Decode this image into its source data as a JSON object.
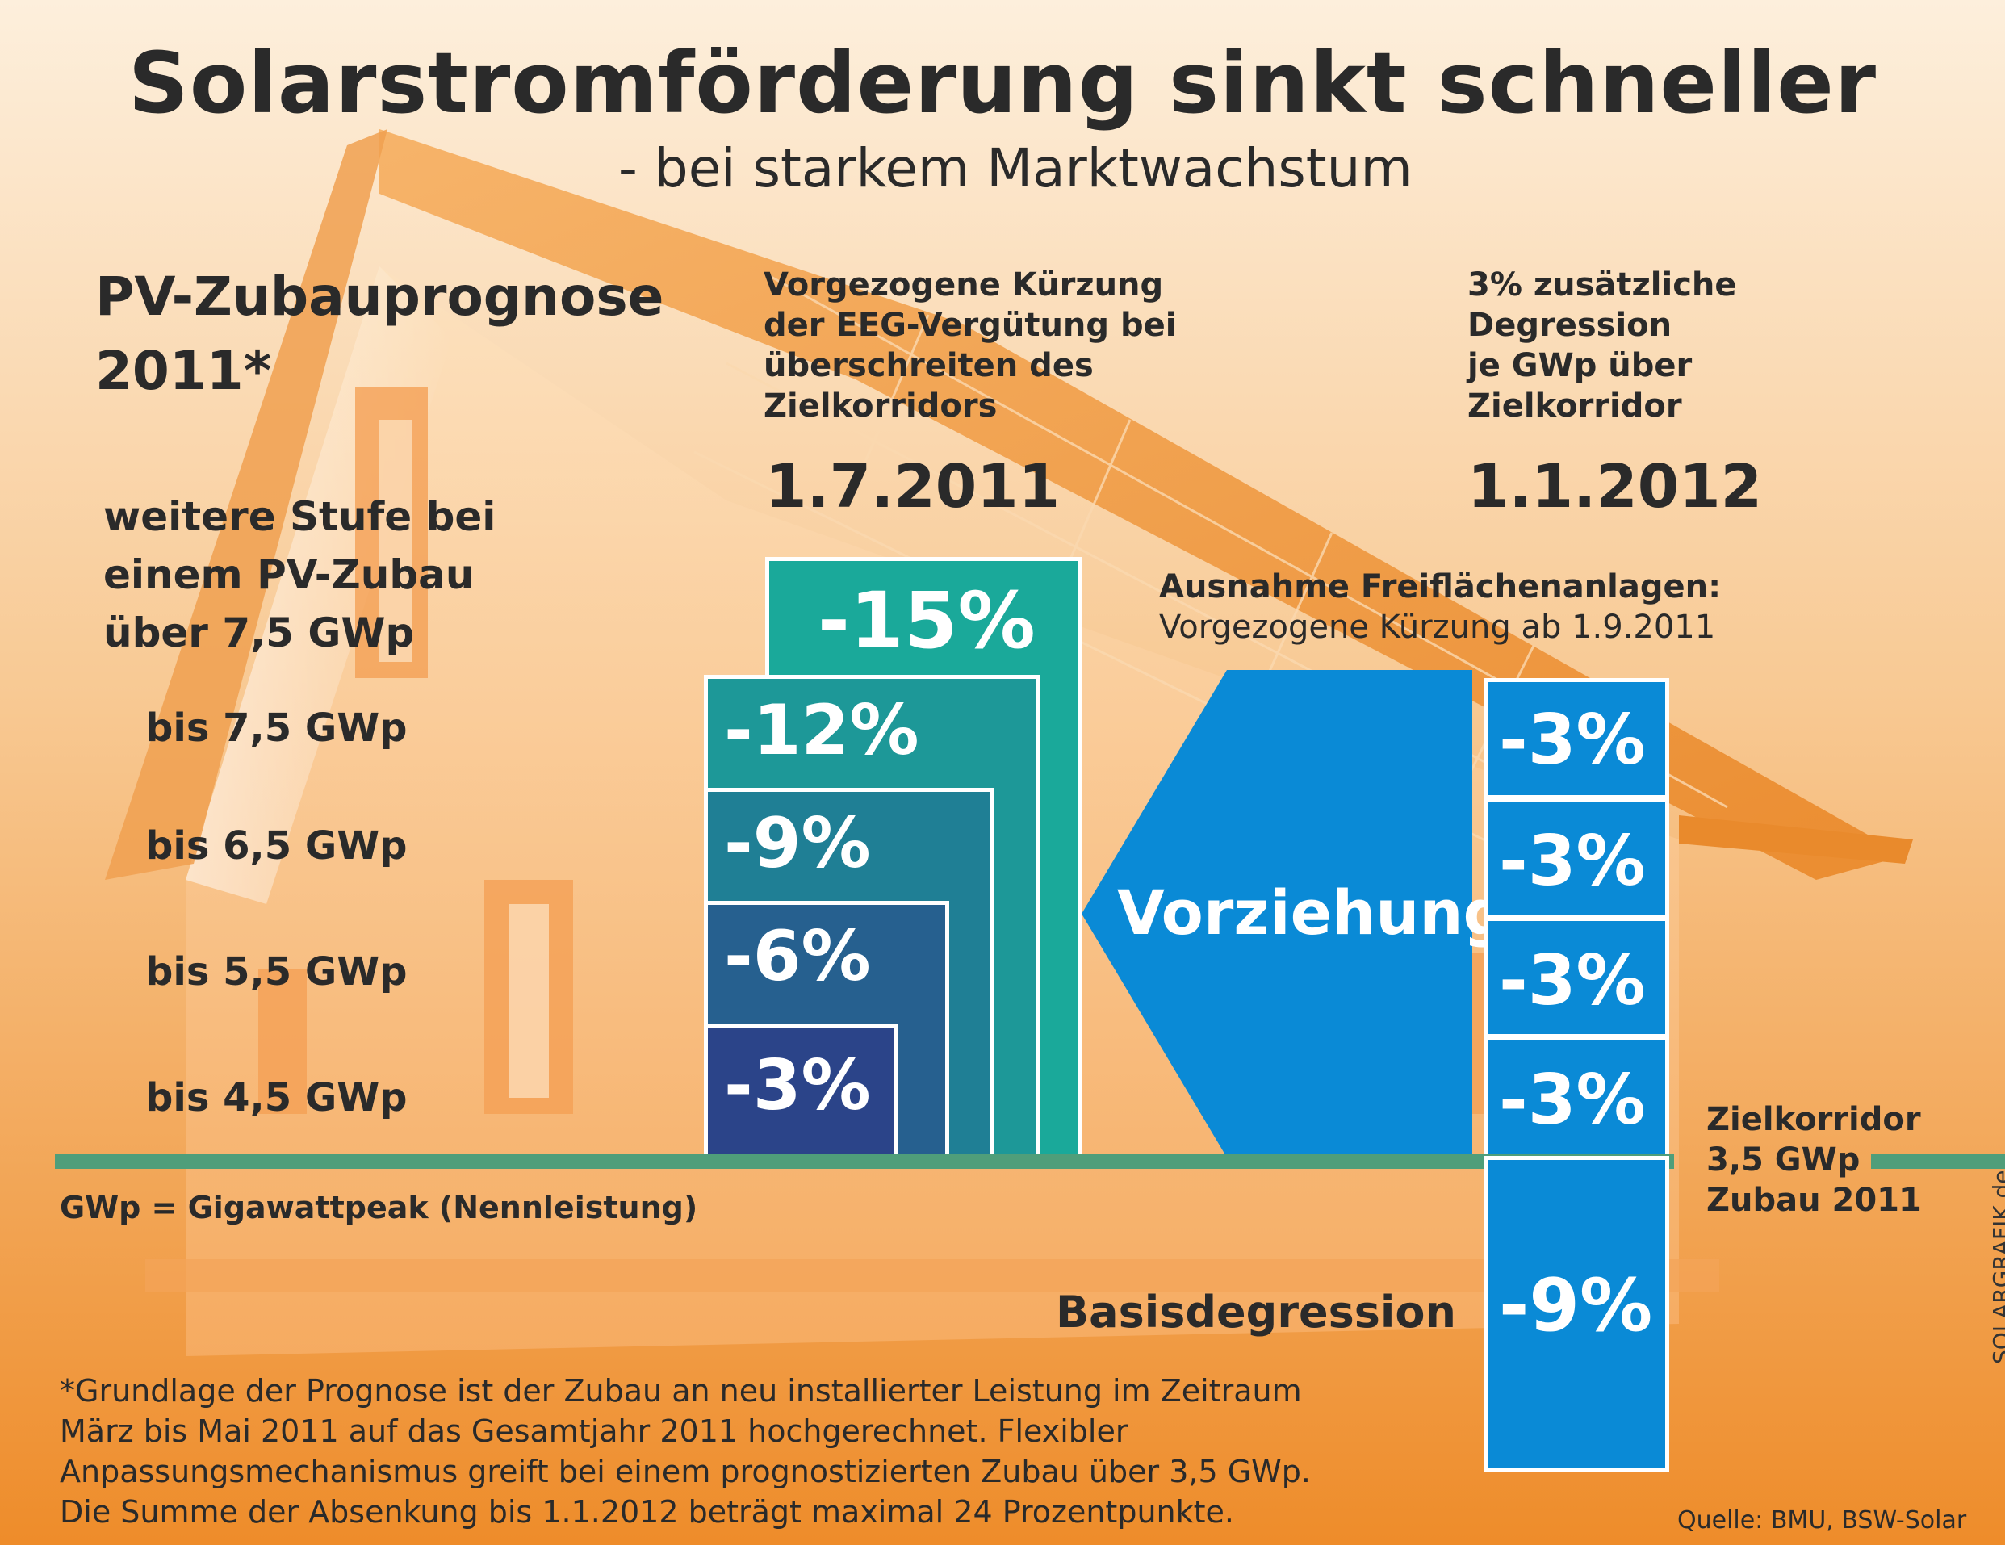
{
  "title": "Solarstromförderung sinkt schneller",
  "subtitle": "- bei starkem Marktwachstum",
  "forecast": {
    "heading_line1": "PV-Zubauprognose",
    "heading_line2": "2011*",
    "further_step": [
      "weitere Stufe bei",
      "einem PV-Zubau",
      "über 7,5 GWp"
    ],
    "tiers": [
      {
        "label": "bis 7,5 GWp",
        "cut": "-12%"
      },
      {
        "label": "bis 6,5 GWp",
        "cut": "-9%"
      },
      {
        "label": "bis 5,5 GWp",
        "cut": "-6%"
      },
      {
        "label": "bis 4,5 GWp",
        "cut": "-3%"
      }
    ],
    "top_cut": "-15%"
  },
  "column_mid": {
    "note": [
      "Vorgezogene Kürzung",
      "der EEG-Vergütung bei",
      "überschreiten des",
      "Zielkorridors"
    ],
    "date": "1.7.2011"
  },
  "column_right": {
    "note": [
      "3% zusätzliche",
      "Degression",
      "je GWp über",
      "Zielkorridor"
    ],
    "date": "1.1.2012",
    "cuts": [
      "-3%",
      "-3%",
      "-3%",
      "-3%"
    ],
    "base_cut": "-9%"
  },
  "exception": {
    "title": "Ausnahme Freiflächenanlagen:",
    "text": "Vorgezogene Kürzung ab 1.9.2011"
  },
  "arrow_label": "Vorziehung",
  "target_corridor": [
    "Zielkorridor",
    "3,5 GWp",
    "Zubau 2011"
  ],
  "basis_label": "Basisdegression",
  "gwp_note": "GWp = Gigawattpeak (Nennleistung)",
  "footnote": [
    "*Grundlage der Prognose ist der Zubau an neu installierter Leistung im Zeitraum",
    "März bis Mai 2011 auf das Gesamtjahr 2011 hochgerechnet. Flexibler",
    "Anpassungsmechanismus greift bei einem prognostizierten Zubau über 3,5 GWp.",
    "Die Summe der Absenkung bis 1.1.2012 beträgt maximal 24 Prozentpunkte."
  ],
  "source": "Quelle: BMU, BSW-Solar",
  "credit": "SOLARGRAFIK.de",
  "colors": {
    "teal_light": "#1aa99a",
    "teal_mid": "#1d9898",
    "teal_dark": "#1f7f95",
    "blue_mid": "#26608f",
    "navy": "#2b4489",
    "blue": "#0a8ad6",
    "green_line": "#4f9e7a"
  }
}
